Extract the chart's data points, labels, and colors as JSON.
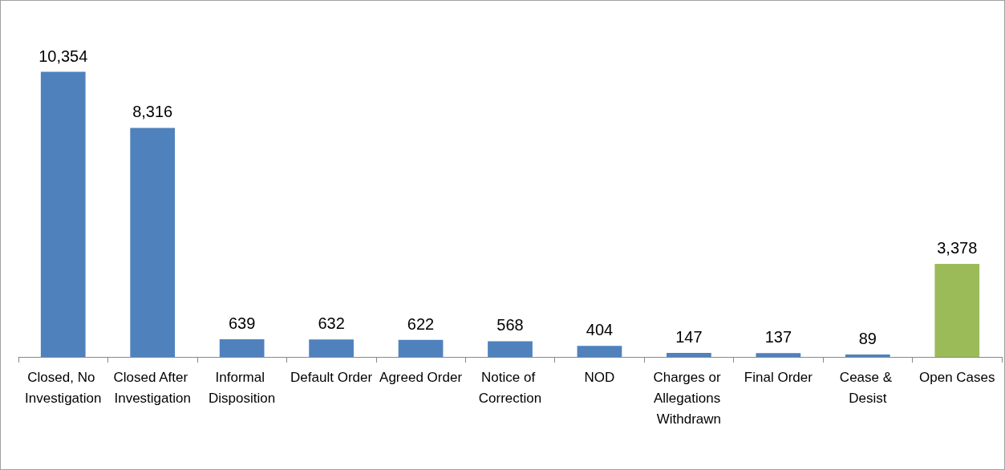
{
  "chart_data": {
    "type": "bar",
    "categories": [
      "Closed, No Investigation",
      "Closed After Investigation",
      "Informal Disposition",
      "Default Order",
      "Agreed Order",
      "Notice of Correction",
      "NOD",
      "Charges or Allegations Withdrawn",
      "Final Order",
      "Cease & Desist",
      "Open Cases"
    ],
    "values": [
      10354,
      8316,
      639,
      632,
      622,
      568,
      404,
      147,
      137,
      89,
      3378
    ],
    "value_labels": [
      "10,354",
      "8,316",
      "639",
      "632",
      "622",
      "568",
      "404",
      "147",
      "137",
      "89",
      "3,378"
    ],
    "colors": [
      "#4f81bd",
      "#4f81bd",
      "#4f81bd",
      "#4f81bd",
      "#4f81bd",
      "#4f81bd",
      "#4f81bd",
      "#4f81bd",
      "#4f81bd",
      "#4f81bd",
      "#9bbb59"
    ]
  }
}
